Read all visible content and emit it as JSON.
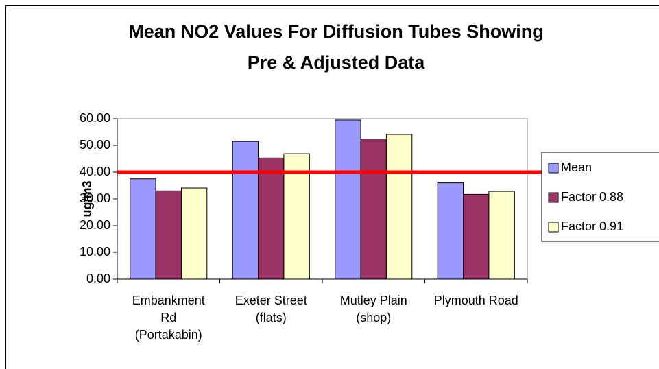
{
  "chart_data": {
    "type": "bar",
    "title": "Mean NO2 Values For Diffusion Tubes Showing\nPre & Adjusted Data",
    "y_label": "ug/m3",
    "categories": [
      "Embankment\nRd\n(Portakabin)",
      "Exeter Street\n(flats)",
      "Mutley Plain\n(shop)",
      "Plymouth Road"
    ],
    "series": [
      {
        "name": "Mean",
        "color": "#9999ff",
        "values": [
          37.5,
          51.5,
          59.5,
          36.0
        ]
      },
      {
        "name": "Factor 0.88",
        "color": "#993366",
        "values": [
          33.0,
          45.3,
          52.4,
          31.7
        ]
      },
      {
        "name": "Factor 0.91",
        "color": "#ffffcc",
        "values": [
          34.1,
          46.9,
          54.1,
          32.8
        ]
      }
    ],
    "threshold": 40,
    "threshold_color": "#ff0000",
    "ylim": [
      0,
      60
    ],
    "yticks": [
      {
        "value": 0,
        "label": "0.00"
      },
      {
        "value": 10,
        "label": "10.00"
      },
      {
        "value": 20,
        "label": "20.00"
      },
      {
        "value": 30,
        "label": "30.00"
      },
      {
        "value": 40,
        "label": "40.00"
      },
      {
        "value": 50,
        "label": "50.00"
      },
      {
        "value": 60,
        "label": "60.00"
      }
    ],
    "grid": false,
    "legend": "right"
  }
}
